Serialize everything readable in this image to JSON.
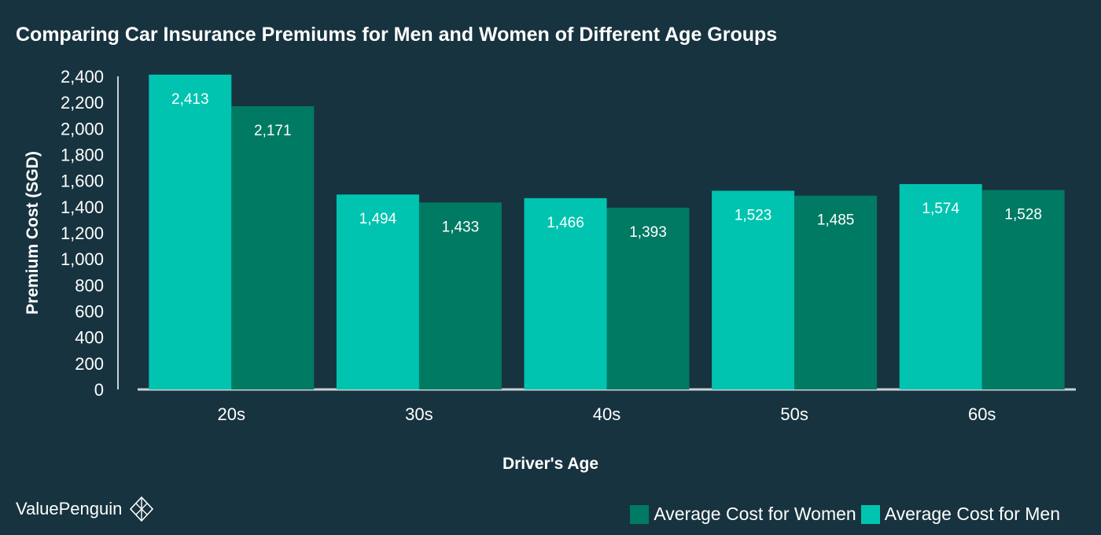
{
  "title": "Comparing Car Insurance Premiums for Men and Women of Different Age Groups",
  "brand": {
    "name": "ValuePenguin",
    "icon": "valuepenguin-logo-icon"
  },
  "colors": {
    "background": "#17333f",
    "men": "#00c4b0",
    "women": "#007a63",
    "axis": "#c9d2d6"
  },
  "chart_data": {
    "type": "bar",
    "title": "Comparing Car Insurance Premiums for Men and Women of Different Age Groups",
    "xlabel": "Driver's Age",
    "ylabel": "Premium Cost (SGD)",
    "ylim": [
      0,
      2400
    ],
    "yticks": [
      0,
      200,
      400,
      600,
      800,
      1000,
      1200,
      1400,
      1600,
      1800,
      2000,
      2200,
      2400
    ],
    "ytick_labels": [
      "0",
      "200",
      "400",
      "600",
      "800",
      "1,000",
      "1,200",
      "1,400",
      "1,600",
      "1,800",
      "2,000",
      "2,200",
      "2,400"
    ],
    "categories": [
      "20s",
      "30s",
      "40s",
      "50s",
      "60s"
    ],
    "series": [
      {
        "name": "Average Cost for Men",
        "color": "#00c4b0",
        "values": [
          2413,
          1494,
          1466,
          1523,
          1574
        ],
        "labels": [
          "2,413",
          "1,494",
          "1,466",
          "1,523",
          "1,574"
        ]
      },
      {
        "name": "Average Cost for Women",
        "color": "#007a63",
        "values": [
          2171,
          1433,
          1393,
          1485,
          1528
        ],
        "labels": [
          "2,171",
          "1,433",
          "1,393",
          "1,485",
          "1,528"
        ]
      }
    ],
    "legend": {
      "position": "bottom-right",
      "order": [
        "Average Cost for Women",
        "Average Cost for Men"
      ]
    },
    "grid": false
  }
}
